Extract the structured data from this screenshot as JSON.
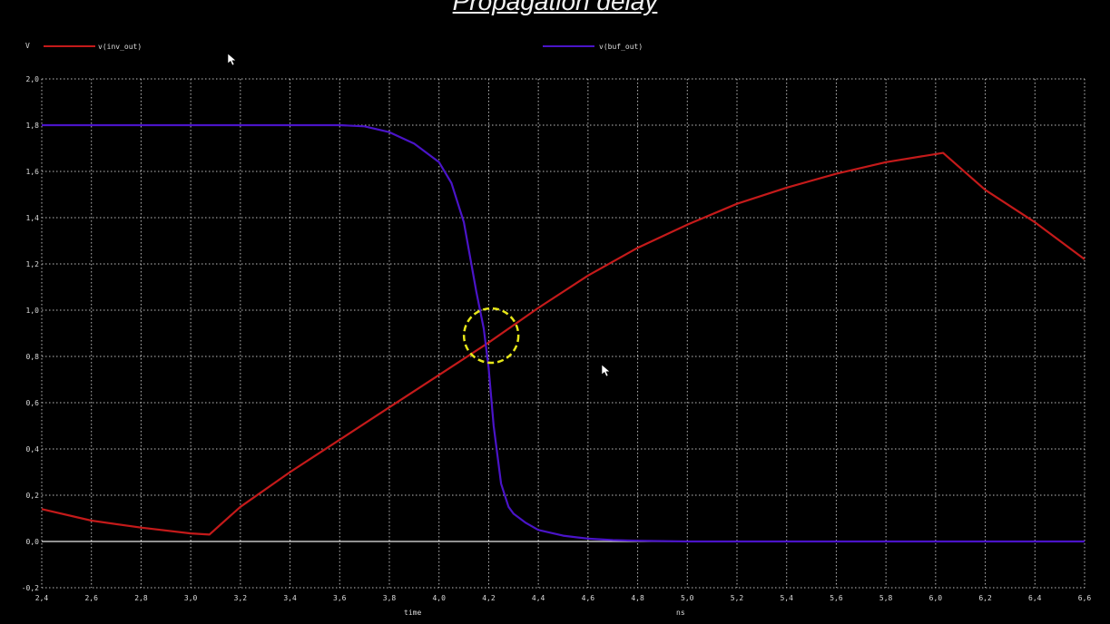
{
  "title": "Propagation delay",
  "chart_data": {
    "type": "line",
    "title": "Propagation delay",
    "xlabel": "time",
    "xunit": "ns",
    "ylabel": "V",
    "xlim": [
      2.4,
      6.6
    ],
    "ylim": [
      -0.2,
      2.0
    ],
    "x_ticks": [
      "2,4",
      "2,6",
      "2,8",
      "3,0",
      "3,2",
      "3,4",
      "3,6",
      "3,8",
      "4,0",
      "4,2",
      "4,4",
      "4,6",
      "4,8",
      "5,0",
      "5,2",
      "5,4",
      "5,6",
      "5,8",
      "6,0",
      "6,2",
      "6,4",
      "6,6"
    ],
    "y_ticks": [
      "2,0",
      "1,8",
      "1,6",
      "1,4",
      "1,2",
      "1,0",
      "0,8",
      "0,6",
      "0,4",
      "0,2",
      "0,0",
      "-0,2"
    ],
    "grid": true,
    "legend_position": "top",
    "series": [
      {
        "name": "v(inv_out)",
        "color": "#c41a1a",
        "x": [
          2.4,
          2.6,
          2.8,
          3.0,
          3.075,
          3.2,
          3.4,
          3.6,
          3.8,
          4.0,
          4.2,
          4.4,
          4.6,
          4.8,
          5.0,
          5.2,
          5.4,
          5.6,
          5.8,
          6.0,
          6.03,
          6.2,
          6.4,
          6.6
        ],
        "y": [
          0.14,
          0.09,
          0.06,
          0.035,
          0.03,
          0.15,
          0.3,
          0.44,
          0.58,
          0.72,
          0.86,
          1.01,
          1.15,
          1.27,
          1.37,
          1.46,
          1.53,
          1.59,
          1.64,
          1.675,
          1.68,
          1.52,
          1.38,
          1.22
        ]
      },
      {
        "name": "v(buf_out)",
        "color": "#4a14c8",
        "x": [
          2.4,
          3.0,
          3.6,
          3.7,
          3.8,
          3.9,
          4.0,
          4.05,
          4.1,
          4.15,
          4.18,
          4.2,
          4.22,
          4.25,
          4.28,
          4.3,
          4.35,
          4.4,
          4.5,
          4.6,
          4.7,
          4.8,
          5.0,
          6.6
        ],
        "y": [
          1.8,
          1.8,
          1.8,
          1.795,
          1.77,
          1.72,
          1.64,
          1.55,
          1.38,
          1.08,
          0.92,
          0.75,
          0.5,
          0.25,
          0.15,
          0.12,
          0.08,
          0.05,
          0.025,
          0.012,
          0.006,
          0.003,
          0.0,
          0.0
        ]
      }
    ],
    "reference_line": {
      "y": 0.0,
      "color": "#e8e8e8"
    },
    "annotation": {
      "type": "dashed-circle",
      "x": 4.21,
      "y": 0.89,
      "color": "#e6e619"
    }
  }
}
